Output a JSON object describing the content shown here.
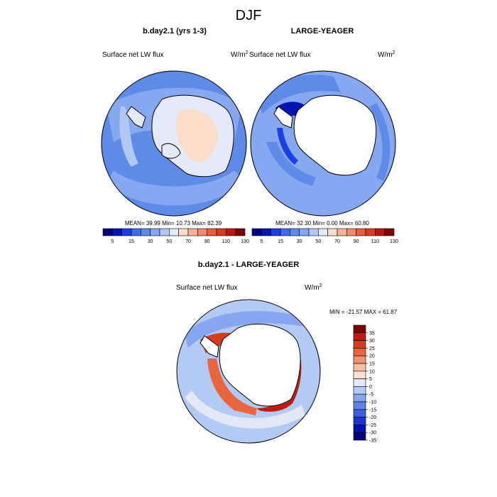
{
  "title": "DJF",
  "panels": [
    {
      "title": "b.day2.1 (yrs 1-3)",
      "variable": "Surface net LW flux",
      "unit_base": "W/m",
      "unit_exp": "2",
      "stats": "MEAN=  39.99  Min=  10.73  Max=  82.39"
    },
    {
      "title": "LARGE-YEAGER",
      "variable": "Surface net LW flux",
      "unit_base": "W/m",
      "unit_exp": "2",
      "stats": "MEAN=  32.30  Min=   0.00  Max=  60.80"
    },
    {
      "title": "b.day2.1 - LARGE-YEAGER",
      "variable": "Surface net LW flux",
      "unit_base": "W/m",
      "unit_exp": "2",
      "stats": "MIN = -21.57 MAX =  61.87"
    }
  ],
  "colors": {
    "abs_scale": [
      "#00007f",
      "#0016b0",
      "#1c3ee6",
      "#3f6ae8",
      "#5e8ae8",
      "#86a8f0",
      "#b1c8f5",
      "#e4eaf8",
      "#fbdccb",
      "#f6b39a",
      "#f08a6e",
      "#e6603f",
      "#d43d22",
      "#b8180e",
      "#7f0000"
    ],
    "diff_scale": [
      "#00007f",
      "#0014a8",
      "#1a34d6",
      "#3d5ee0",
      "#5e82e6",
      "#86a6ef",
      "#b3caf5",
      "#e2e8f6",
      "#fde0ce",
      "#f8bea3",
      "#f2916f",
      "#e8653e",
      "#d83c20",
      "#bd1c10",
      "#7f0000"
    ],
    "land": "#ffffff",
    "ocean_abs_base": "#5e8ae8",
    "ocean_diff_base": "#b3caf5"
  },
  "chart_data": [
    {
      "type": "heatmap",
      "title": "b.day2.1 (yrs 1-3)",
      "projection": "south polar stereographic",
      "field": "Surface net LW flux",
      "units": "W/m2",
      "colorbar_ticks": [
        "5",
        "15",
        "30",
        "50",
        "70",
        "90",
        "110",
        "130"
      ],
      "mean": 39.99,
      "min": 10.73,
      "max": 82.39
    },
    {
      "type": "heatmap",
      "title": "LARGE-YEAGER",
      "projection": "south polar stereographic",
      "field": "Surface net LW flux",
      "units": "W/m2",
      "colorbar_ticks": [
        "5",
        "15",
        "30",
        "50",
        "70",
        "90",
        "110",
        "130"
      ],
      "mean": 32.3,
      "min": 0.0,
      "max": 60.8
    },
    {
      "type": "heatmap",
      "title": "b.day2.1 - LARGE-YEAGER",
      "projection": "south polar stereographic",
      "field": "Surface net LW flux",
      "units": "W/m2",
      "colorbar_ticks": [
        "35",
        "30",
        "25",
        "20",
        "15",
        "10",
        "5",
        "0",
        "-5",
        "-10",
        "-15",
        "-20",
        "-25",
        "-30",
        "-35"
      ],
      "min": -21.57,
      "max": 61.87
    }
  ]
}
